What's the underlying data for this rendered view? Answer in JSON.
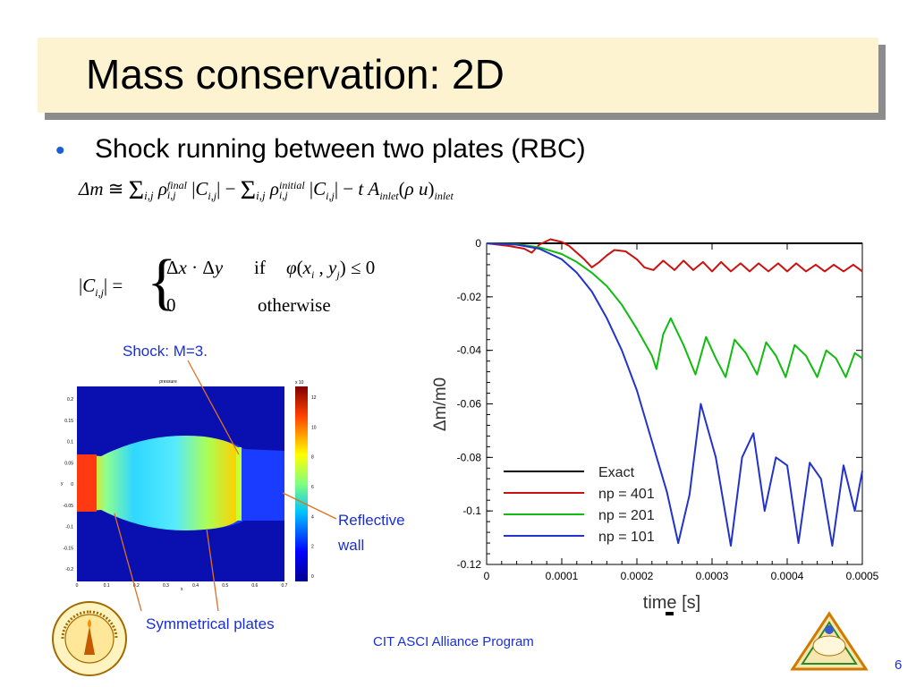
{
  "slide": {
    "title": "Mass conservation: 2D",
    "bullet": "Shock running between two plates (RBC)",
    "footer": "CIT ASCI Alliance Program",
    "page_number": "6"
  },
  "annotations": {
    "shock_label": "Shock: M=3.",
    "wall_label_1": "Reflective",
    "wall_label_2": "wall",
    "plates_label": "Symmetrical plates"
  },
  "equation2": {
    "row1_cond": "if",
    "row2_val": "0",
    "row2_cond": "otherwise"
  },
  "contour_plot": {
    "title": "pressure",
    "colorbar_exponent": "x 10",
    "colorbar_ticks": [
      "12",
      "10",
      "8",
      "6",
      "4",
      "2",
      "0"
    ],
    "y_ticks": [
      "0.2",
      "0.15",
      "0.1",
      "0.05",
      "0",
      "-0.05",
      "-0.1",
      "-0.15",
      "-0.2"
    ],
    "x_ticks": [
      "0",
      "0.1",
      "0.2",
      "0.3",
      "0.4",
      "0.5",
      "0.6",
      "0.7"
    ],
    "ylabel": "y",
    "xlabel": "x"
  },
  "colors": {
    "exact": "#000000",
    "np401": "#cc1111",
    "np201": "#11bb11",
    "np101": "#2233cc",
    "annotation_line": "#e07020"
  },
  "chart_data": {
    "type": "line",
    "xlabel": "time [s]",
    "ylabel": "Δm/m0",
    "xlim": [
      0,
      0.0005
    ],
    "ylim": [
      -0.12,
      0
    ],
    "x_ticks": [
      "0",
      "0.0001",
      "0.0002",
      "0.0003",
      "0.0004",
      "0.0005"
    ],
    "y_ticks": [
      "0",
      "-0.02",
      "-0.04",
      "-0.06",
      "-0.08",
      "-0.1",
      "-0.12"
    ],
    "legend_position": "bottom-left",
    "series": [
      {
        "name": "Exact",
        "color": "#000000",
        "x": [
          0,
          0.0005
        ],
        "y": [
          0,
          0
        ]
      },
      {
        "name": "np = 401",
        "color": "#cc1111",
        "x": [
          0,
          3e-05,
          5e-05,
          6e-05,
          7e-05,
          8.5e-05,
          0.0001,
          0.00011,
          0.00012,
          0.00013,
          0.00014,
          0.00015,
          0.00016,
          0.00017,
          0.000185,
          0.0002,
          0.00021,
          0.000222,
          0.000235,
          0.00025,
          0.000262,
          0.000275,
          0.000288,
          0.0003,
          0.000312,
          0.000325,
          0.000338,
          0.00035,
          0.000362,
          0.000375,
          0.000388,
          0.0004,
          0.000412,
          0.000425,
          0.000438,
          0.00045,
          0.000462,
          0.000475,
          0.000488,
          0.0005
        ],
        "y": [
          0,
          -0.001,
          -0.002,
          -0.0035,
          -0.0005,
          0.0015,
          0.0005,
          -0.001,
          -0.0035,
          -0.006,
          -0.009,
          -0.007,
          -0.0045,
          -0.0025,
          -0.003,
          -0.006,
          -0.009,
          -0.01,
          -0.0065,
          -0.01,
          -0.0065,
          -0.01,
          -0.007,
          -0.0105,
          -0.007,
          -0.0105,
          -0.0075,
          -0.0105,
          -0.0075,
          -0.0105,
          -0.0075,
          -0.0105,
          -0.0075,
          -0.0105,
          -0.008,
          -0.0105,
          -0.008,
          -0.0105,
          -0.008,
          -0.0105
        ]
      },
      {
        "name": "np = 201",
        "color": "#11bb11",
        "x": [
          0,
          4e-05,
          7e-05,
          0.0001,
          0.00012,
          0.00014,
          0.00016,
          0.00018,
          0.0002,
          0.00022,
          0.000226,
          0.000235,
          0.000245,
          0.000262,
          0.000278,
          0.000292,
          0.000305,
          0.000318,
          0.00033,
          0.000345,
          0.00036,
          0.000372,
          0.000385,
          0.000398,
          0.00041,
          0.000425,
          0.00044,
          0.000452,
          0.000465,
          0.000478,
          0.00049,
          0.0005
        ],
        "y": [
          0,
          -0.0003,
          -0.0015,
          -0.004,
          -0.007,
          -0.011,
          -0.016,
          -0.023,
          -0.032,
          -0.042,
          -0.047,
          -0.034,
          -0.028,
          -0.038,
          -0.049,
          -0.035,
          -0.043,
          -0.05,
          -0.036,
          -0.041,
          -0.049,
          -0.037,
          -0.042,
          -0.05,
          -0.038,
          -0.042,
          -0.05,
          -0.04,
          -0.043,
          -0.05,
          -0.041,
          -0.043
        ]
      },
      {
        "name": "np = 101",
        "color": "#2233cc",
        "x": [
          0,
          4e-05,
          7e-05,
          0.0001,
          0.00012,
          0.00014,
          0.00016,
          0.00018,
          0.0002,
          0.00022,
          0.00024,
          0.000255,
          0.00027,
          0.000285,
          0.000305,
          0.000325,
          0.00034,
          0.000355,
          0.00037,
          0.000385,
          0.0004,
          0.000415,
          0.00043,
          0.000445,
          0.00046,
          0.000475,
          0.00049,
          0.0005
        ],
        "y": [
          0,
          -0.0005,
          -0.002,
          -0.006,
          -0.011,
          -0.018,
          -0.028,
          -0.04,
          -0.055,
          -0.074,
          -0.093,
          -0.112,
          -0.094,
          -0.06,
          -0.08,
          -0.113,
          -0.08,
          -0.071,
          -0.1,
          -0.08,
          -0.083,
          -0.112,
          -0.082,
          -0.088,
          -0.113,
          -0.083,
          -0.1,
          -0.085
        ]
      }
    ]
  }
}
